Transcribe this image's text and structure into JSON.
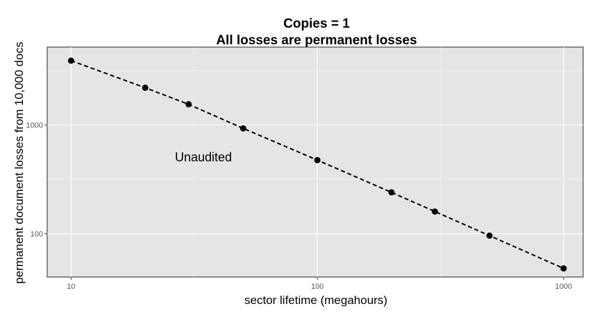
{
  "chart_data": {
    "type": "scatter",
    "title": "Copies = 1",
    "subtitle": "All losses are permanent losses",
    "xlabel": "sector lifetime (megahours)",
    "ylabel": "permanent document losses from 10,000 docs",
    "x_scale": "log",
    "y_scale": "log",
    "xlim": [
      8,
      1200
    ],
    "ylim": [
      40,
      5200
    ],
    "x_ticks": [
      10,
      100,
      1000
    ],
    "x_tick_labels": [
      "10",
      "100",
      "1000"
    ],
    "y_ticks": [
      100,
      1000
    ],
    "y_tick_labels": [
      "100",
      "1000"
    ],
    "grid": true,
    "annotation": "Unaudited",
    "series": [
      {
        "x": [
          10,
          20,
          30,
          50,
          100,
          200,
          300,
          500,
          1000
        ],
        "y": [
          3900,
          2200,
          1550,
          930,
          475,
          240,
          160,
          96,
          48
        ],
        "line_style": "dashed",
        "marker": "circle",
        "color": "#000000"
      }
    ],
    "panel_color": "#e5e5e5",
    "grid_color": "#ffffff"
  }
}
